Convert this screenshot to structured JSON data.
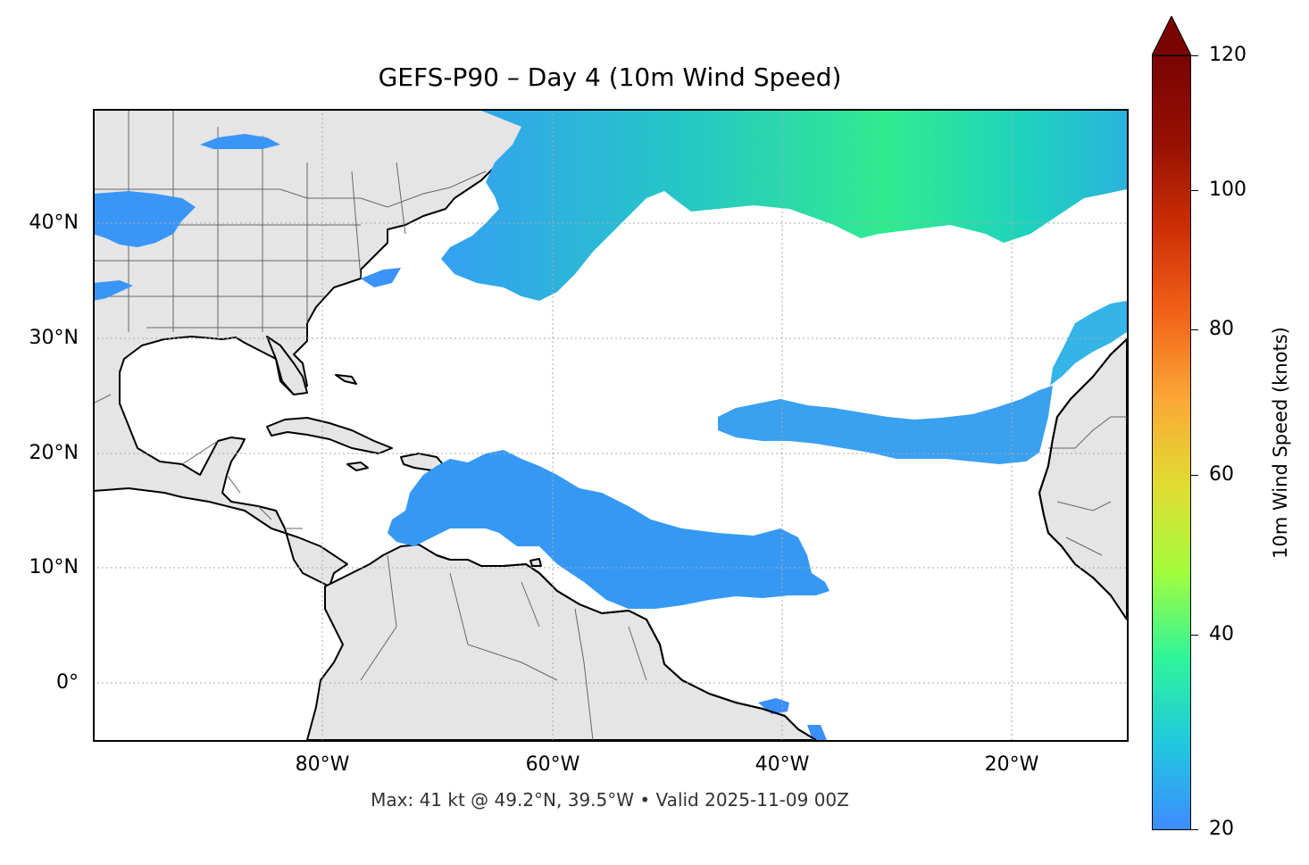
{
  "title": "GEFS-P90 – Day 4 (10m Wind Speed)",
  "footer": "Max: 41 kt @ 49.2°N, 39.5°W • Valid 2025-11-09 00Z",
  "map": {
    "extent": {
      "lon_min": -100,
      "lon_max": -10,
      "lat_min": -5,
      "lat_max": 50
    },
    "lat_ticks": [
      {
        "value": 40,
        "label": "40°N"
      },
      {
        "value": 30,
        "label": "30°N"
      },
      {
        "value": 20,
        "label": "20°N"
      },
      {
        "value": 10,
        "label": "10°N"
      },
      {
        "value": 0,
        "label": "0°"
      }
    ],
    "lon_ticks": [
      {
        "value": -80,
        "label": "80°W"
      },
      {
        "value": -60,
        "label": "60°W"
      },
      {
        "value": -40,
        "label": "40°W"
      },
      {
        "value": -20,
        "label": "20°W"
      }
    ],
    "land_color": "#e5e5e5",
    "gridlines": true,
    "max_wind": {
      "value_kt": 41,
      "lat": 49.2,
      "lon": -39.5
    },
    "wind_regions": [
      {
        "name": "north-atlantic-jet",
        "min_kt": 20,
        "max_kt": 41
      },
      {
        "name": "caribbean-trades",
        "min_kt": 20,
        "max_kt": 26
      },
      {
        "name": "subtropical-band",
        "min_kt": 20,
        "max_kt": 26
      },
      {
        "name": "canary-coast",
        "min_kt": 20,
        "max_kt": 29
      },
      {
        "name": "central-us",
        "min_kt": 20,
        "max_kt": 26
      },
      {
        "name": "brazil-coast",
        "min_kt": 20,
        "max_kt": 24
      }
    ]
  },
  "colorbar": {
    "label": "10m Wind Speed (knots)",
    "min": 20,
    "max": 120,
    "extend": "max",
    "ticks": [
      {
        "value": 20,
        "label": "20"
      },
      {
        "value": 40,
        "label": "40"
      },
      {
        "value": 60,
        "label": "60"
      },
      {
        "value": 80,
        "label": "80"
      },
      {
        "value": 100,
        "label": "100"
      },
      {
        "value": 120,
        "label": "120"
      }
    ],
    "colors": [
      "#3e8cff",
      "#1fc8de",
      "#2ff59a",
      "#a3fd3c",
      "#e0dc32",
      "#fba835",
      "#f26218",
      "#cd2f05",
      "#961001",
      "#7a0403"
    ]
  }
}
